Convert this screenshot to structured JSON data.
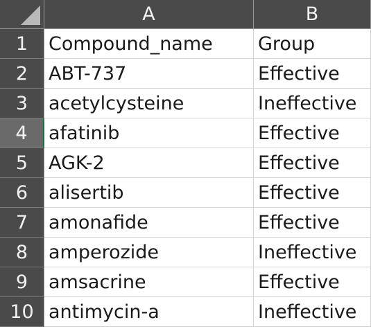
{
  "columns": [
    "A",
    "B"
  ],
  "rows": [
    {
      "num": "1",
      "a": "Compound_name",
      "b": "Group"
    },
    {
      "num": "2",
      "a": "ABT-737",
      "b": "Effective"
    },
    {
      "num": "3",
      "a": "acetylcysteine",
      "b": "Ineffective"
    },
    {
      "num": "4",
      "a": "afatinib",
      "b": "Effective"
    },
    {
      "num": "5",
      "a": "AGK-2",
      "b": "Effective"
    },
    {
      "num": "6",
      "a": "alisertib",
      "b": "Effective"
    },
    {
      "num": "7",
      "a": "amonafide",
      "b": "Effective"
    },
    {
      "num": "8",
      "a": "amperozide",
      "b": "Ineffective"
    },
    {
      "num": "9",
      "a": "amsacrine",
      "b": "Effective"
    },
    {
      "num": "10",
      "a": "antimycin-a",
      "b": "Ineffective"
    }
  ],
  "selected_row": "4"
}
